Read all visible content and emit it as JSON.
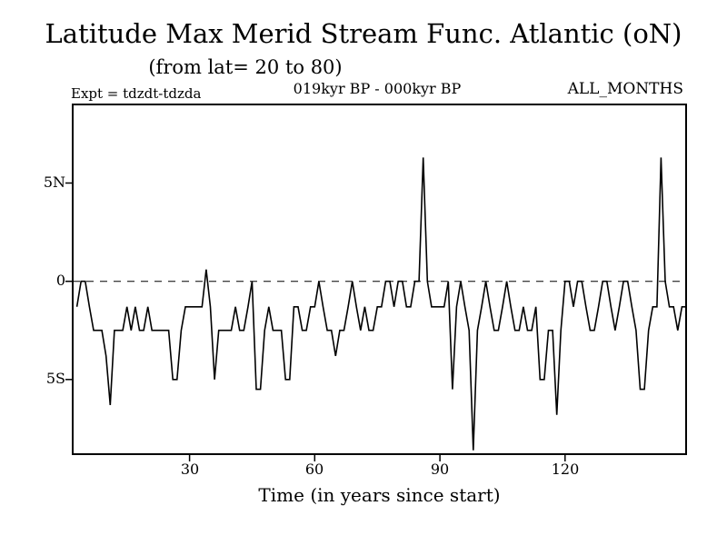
{
  "annotations": {
    "expt": "Expt = tdzdt-tdzda",
    "period": "019kyr BP - 000kyr BP",
    "months": "ALL_MONTHS"
  },
  "chart_data": {
    "type": "line",
    "title": "Latitude Max Merid Stream Func. Atlantic (oN)",
    "subtitle": "(from lat= 20 to 80)",
    "xlabel": "Time (in years since start)",
    "ylabel": "",
    "xlim": [
      2,
      149
    ],
    "ylim": [
      -8.8,
      9.0
    ],
    "grid": false,
    "legend": "none",
    "zero_line_dashed": true,
    "line_color": "#000000",
    "background_color": "#ffffff",
    "xticks": [
      {
        "value": 30,
        "label": "30"
      },
      {
        "value": 60,
        "label": "60"
      },
      {
        "value": 90,
        "label": "90"
      },
      {
        "value": 120,
        "label": "120"
      }
    ],
    "yticks": [
      {
        "value": 5,
        "label": "5N"
      },
      {
        "value": 0,
        "label": "0"
      },
      {
        "value": -5,
        "label": "5S"
      }
    ],
    "series": [
      {
        "name": "latitude-of-max-meridional-streamfunction",
        "x": [
          3,
          4,
          5,
          6,
          7,
          8,
          9,
          10,
          11,
          12,
          13,
          14,
          15,
          16,
          17,
          18,
          19,
          20,
          21,
          22,
          23,
          24,
          25,
          26,
          27,
          28,
          29,
          30,
          31,
          32,
          33,
          34,
          35,
          36,
          37,
          38,
          39,
          40,
          41,
          42,
          43,
          44,
          45,
          46,
          47,
          48,
          49,
          50,
          51,
          52,
          53,
          54,
          55,
          56,
          57,
          58,
          59,
          60,
          61,
          62,
          63,
          64,
          65,
          66,
          67,
          68,
          69,
          70,
          71,
          72,
          73,
          74,
          75,
          76,
          77,
          78,
          79,
          80,
          81,
          82,
          83,
          84,
          85,
          86,
          87,
          88,
          89,
          90,
          91,
          92,
          93,
          94,
          95,
          96,
          97,
          98,
          99,
          100,
          101,
          102,
          103,
          104,
          105,
          106,
          107,
          108,
          109,
          110,
          111,
          112,
          113,
          114,
          115,
          116,
          117,
          118,
          119,
          120,
          121,
          122,
          123,
          124,
          125,
          126,
          127,
          128,
          129,
          130,
          131,
          132,
          133,
          134,
          135,
          136,
          137,
          138,
          139,
          140,
          141,
          142,
          143,
          144,
          145,
          146,
          147,
          148,
          149
        ],
        "y": [
          -1.3,
          0,
          0,
          -1.3,
          -2.5,
          -2.5,
          -2.5,
          -3.8,
          -6.3,
          -2.5,
          -2.5,
          -2.5,
          -1.3,
          -2.5,
          -1.3,
          -2.5,
          -2.5,
          -1.3,
          -2.5,
          -2.5,
          -2.5,
          -2.5,
          -2.5,
          -5.0,
          -5.0,
          -2.5,
          -1.3,
          -1.3,
          -1.3,
          -1.3,
          -1.3,
          0.6,
          -1.3,
          -5.0,
          -2.5,
          -2.5,
          -2.5,
          -2.5,
          -1.3,
          -2.5,
          -2.5,
          -1.3,
          0,
          -5.5,
          -5.5,
          -2.5,
          -1.3,
          -2.5,
          -2.5,
          -2.5,
          -5.0,
          -5.0,
          -1.3,
          -1.3,
          -2.5,
          -2.5,
          -1.3,
          -1.3,
          0,
          -1.3,
          -2.5,
          -2.5,
          -3.8,
          -2.5,
          -2.5,
          -1.3,
          0,
          -1.3,
          -2.5,
          -1.3,
          -2.5,
          -2.5,
          -1.3,
          -1.3,
          0,
          0,
          -1.3,
          0,
          0,
          -1.3,
          -1.3,
          0,
          0,
          6.3,
          0,
          -1.3,
          -1.3,
          -1.3,
          -1.3,
          0,
          -5.5,
          -1.3,
          0,
          -1.3,
          -2.5,
          -8.6,
          -2.5,
          -1.3,
          0,
          -1.3,
          -2.5,
          -2.5,
          -1.3,
          0,
          -1.3,
          -2.5,
          -2.5,
          -1.3,
          -2.5,
          -2.5,
          -1.3,
          -5.0,
          -5.0,
          -2.5,
          -2.5,
          -6.8,
          -2.5,
          0,
          0,
          -1.3,
          0,
          0,
          -1.3,
          -2.5,
          -2.5,
          -1.3,
          0,
          0,
          -1.3,
          -2.5,
          -1.3,
          0,
          0,
          -1.3,
          -2.5,
          -5.5,
          -5.5,
          -2.5,
          -1.3,
          -1.3,
          6.3,
          0,
          -1.3,
          -1.3,
          -2.5,
          -1.3,
          -1.3
        ]
      }
    ]
  }
}
